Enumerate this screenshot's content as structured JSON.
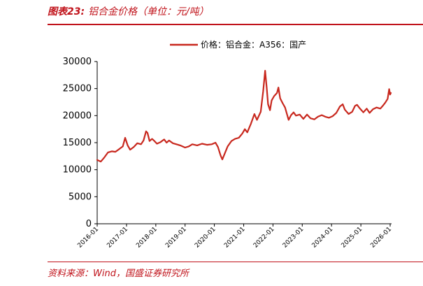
{
  "figure": {
    "number_label": "图表23:",
    "title": "铝合金价格（单位：元/吨）",
    "source": "资料来源：Wind，国盛证券研究所"
  },
  "colors": {
    "accent": "#c0121a",
    "series": "#c8281e"
  },
  "chart_data": {
    "type": "line",
    "title": "",
    "xlabel": "",
    "ylabel": "",
    "ylim": [
      0,
      30000
    ],
    "y_ticks": [
      "0",
      "5000",
      "10000",
      "15000",
      "20000",
      "25000",
      "30000"
    ],
    "x_tick_labels": [
      "2016-01",
      "2017-01",
      "2018-01",
      "2019-01",
      "2020-01",
      "2021-01",
      "2022-01",
      "2023-01",
      "2024-01",
      "2025-01",
      "2026-01"
    ],
    "grid": false,
    "legend": "top-center",
    "series": [
      {
        "name": "价格：铝合金：A356：国产",
        "points": [
          [
            "2016-01-01",
            11800
          ],
          [
            "2016-02-15",
            11500
          ],
          [
            "2016-04-01",
            12300
          ],
          [
            "2016-05-15",
            13200
          ],
          [
            "2016-07-01",
            13400
          ],
          [
            "2016-08-15",
            13300
          ],
          [
            "2016-10-01",
            13800
          ],
          [
            "2016-11-15",
            14300
          ],
          [
            "2016-12-15",
            15900
          ],
          [
            "2017-01-15",
            14500
          ],
          [
            "2017-02-15",
            13700
          ],
          [
            "2017-04-01",
            14200
          ],
          [
            "2017-05-15",
            14900
          ],
          [
            "2017-07-01",
            14700
          ],
          [
            "2017-08-01",
            15400
          ],
          [
            "2017-09-01",
            17100
          ],
          [
            "2017-09-20",
            16800
          ],
          [
            "2017-10-15",
            15300
          ],
          [
            "2017-11-15",
            15700
          ],
          [
            "2017-12-15",
            15300
          ],
          [
            "2018-01-15",
            14800
          ],
          [
            "2018-03-01",
            15100
          ],
          [
            "2018-04-15",
            15600
          ],
          [
            "2018-05-15",
            15000
          ],
          [
            "2018-06-15",
            15400
          ],
          [
            "2018-08-01",
            14900
          ],
          [
            "2018-09-15",
            14700
          ],
          [
            "2018-11-01",
            14500
          ],
          [
            "2019-01-01",
            14100
          ],
          [
            "2019-02-15",
            14300
          ],
          [
            "2019-04-01",
            14700
          ],
          [
            "2019-06-01",
            14500
          ],
          [
            "2019-08-01",
            14800
          ],
          [
            "2019-10-01",
            14600
          ],
          [
            "2019-12-01",
            14700
          ],
          [
            "2020-01-15",
            15000
          ],
          [
            "2020-02-15",
            14200
          ],
          [
            "2020-03-20",
            12600
          ],
          [
            "2020-04-10",
            11900
          ],
          [
            "2020-05-15",
            13200
          ],
          [
            "2020-06-15",
            14300
          ],
          [
            "2020-08-01",
            15300
          ],
          [
            "2020-09-15",
            15700
          ],
          [
            "2020-11-01",
            15900
          ],
          [
            "2020-12-15",
            16700
          ],
          [
            "2021-01-15",
            17500
          ],
          [
            "2021-02-15",
            16900
          ],
          [
            "2021-04-01",
            18500
          ],
          [
            "2021-05-15",
            20300
          ],
          [
            "2021-06-15",
            19200
          ],
          [
            "2021-08-01",
            20700
          ],
          [
            "2021-09-01",
            24500
          ],
          [
            "2021-09-25",
            28300
          ],
          [
            "2021-10-15",
            25100
          ],
          [
            "2021-11-01",
            22100
          ],
          [
            "2021-11-25",
            21000
          ],
          [
            "2021-12-15",
            22800
          ],
          [
            "2022-01-15",
            23600
          ],
          [
            "2022-02-20",
            24200
          ],
          [
            "2022-03-10",
            25200
          ],
          [
            "2022-04-01",
            23200
          ],
          [
            "2022-05-01",
            22300
          ],
          [
            "2022-06-01",
            21500
          ],
          [
            "2022-07-15",
            19200
          ],
          [
            "2022-08-15",
            20100
          ],
          [
            "2022-09-15",
            20600
          ],
          [
            "2022-10-15",
            20000
          ],
          [
            "2022-12-01",
            20200
          ],
          [
            "2023-01-15",
            19400
          ],
          [
            "2023-03-01",
            20200
          ],
          [
            "2023-04-15",
            19500
          ],
          [
            "2023-06-01",
            19300
          ],
          [
            "2023-07-15",
            19800
          ],
          [
            "2023-09-01",
            20100
          ],
          [
            "2023-10-15",
            19800
          ],
          [
            "2023-12-01",
            19600
          ],
          [
            "2024-01-15",
            19900
          ],
          [
            "2024-03-01",
            20500
          ],
          [
            "2024-04-15",
            21700
          ],
          [
            "2024-05-20",
            22100
          ],
          [
            "2024-06-15",
            21100
          ],
          [
            "2024-08-01",
            20300
          ],
          [
            "2024-09-15",
            20700
          ],
          [
            "2024-10-20",
            21800
          ],
          [
            "2024-11-15",
            22000
          ],
          [
            "2024-12-15",
            21400
          ],
          [
            "2025-02-01",
            20600
          ],
          [
            "2025-03-15",
            21300
          ],
          [
            "2025-04-20",
            20500
          ],
          [
            "2025-06-01",
            21200
          ],
          [
            "2025-07-15",
            21500
          ],
          [
            "2025-09-01",
            21300
          ],
          [
            "2025-10-01",
            21800
          ],
          [
            "2025-11-01",
            22400
          ],
          [
            "2025-12-01",
            23100
          ],
          [
            "2025-12-20",
            24900
          ],
          [
            "2026-01-01",
            23900
          ],
          [
            "2026-01-10",
            24200
          ]
        ]
      }
    ]
  }
}
